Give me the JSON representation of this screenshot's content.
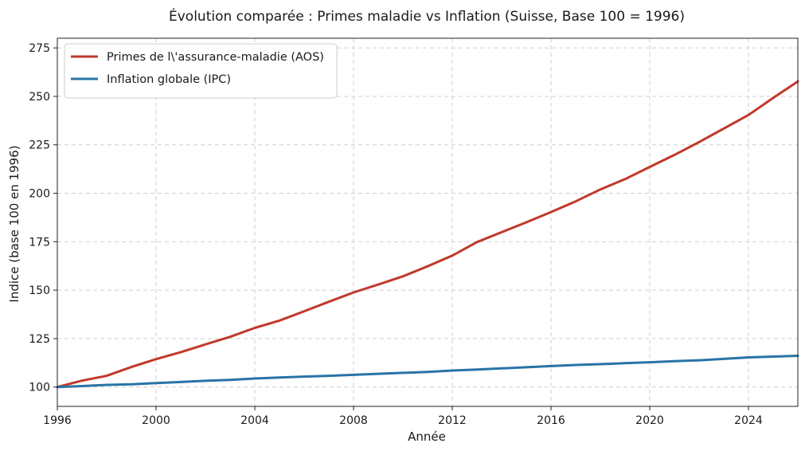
{
  "chart_data": {
    "type": "line",
    "title": "Évolution comparée : Primes maladie vs Inflation (Suisse, Base 100 = 1996)",
    "xlabel": "Année",
    "ylabel": "Indice (base 100 en 1996)",
    "xlim": [
      1996,
      2026
    ],
    "ylim": [
      90,
      280
    ],
    "xticks": [
      "1996",
      "2000",
      "2004",
      "2008",
      "2012",
      "2016",
      "2020",
      "2024"
    ],
    "yticks": [
      "100",
      "125",
      "150",
      "175",
      "200",
      "225",
      "250",
      "275"
    ],
    "grid": true,
    "legend_position": "top-left",
    "x": [
      1996,
      1997,
      1998,
      1999,
      2000,
      2001,
      2002,
      2003,
      2004,
      2005,
      2006,
      2007,
      2008,
      2009,
      2010,
      2011,
      2012,
      2013,
      2014,
      2015,
      2016,
      2017,
      2018,
      2019,
      2020,
      2021,
      2022,
      2023,
      2024,
      2025,
      2026
    ],
    "series": [
      {
        "name": "Primes de l\\'assurance-maladie (AOS)",
        "color": "#c0392b",
        "values": [
          100,
          103.3,
          105.8,
          110.3,
          114.4,
          118.0,
          122.0,
          125.9,
          130.5,
          134.3,
          139.1,
          144.0,
          148.8,
          152.9,
          157.1,
          162.3,
          167.8,
          174.8,
          179.9,
          185.0,
          190.3,
          195.8,
          202.0,
          207.3,
          213.6,
          219.8,
          226.4,
          233.4,
          240.4,
          249.2,
          257.7
        ]
      },
      {
        "name": "Inflation globale (IPC)",
        "color": "#2874a6",
        "values": [
          100,
          100.5,
          101.1,
          101.4,
          102.0,
          102.6,
          103.2,
          103.7,
          104.4,
          104.9,
          105.4,
          105.8,
          106.3,
          106.8,
          107.3,
          107.8,
          108.5,
          109.0,
          109.6,
          110.2,
          110.8,
          111.4,
          111.8,
          112.3,
          112.8,
          113.3,
          113.8,
          114.5,
          115.3,
          115.7,
          116.1
        ]
      }
    ]
  }
}
